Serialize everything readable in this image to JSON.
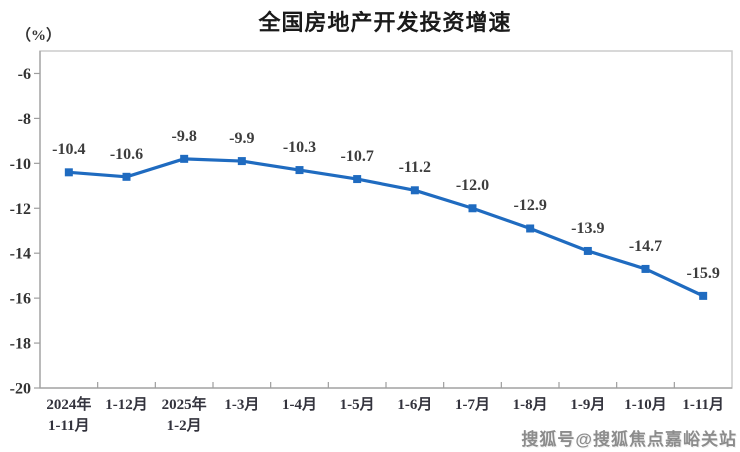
{
  "page": {
    "watermark": "搜狐号@搜狐焦点嘉峪关站"
  },
  "chart_data": {
    "type": "line",
    "title": "全国房地产开发投资增速",
    "ylabel": "（%）",
    "xlabel": "",
    "legend": "none",
    "grid": false,
    "categories": [
      "2024年 1-11月",
      "1-12月",
      "2025年 1-2月",
      "1-3月",
      "1-4月",
      "1-5月",
      "1-6月",
      "1-7月",
      "1-8月",
      "1-9月",
      "1-10月",
      "1-11月"
    ],
    "category_lines": [
      [
        "2024年",
        "1-11月"
      ],
      [
        "1-12月"
      ],
      [
        "2025年",
        "1-2月"
      ],
      [
        "1-3月"
      ],
      [
        "1-4月"
      ],
      [
        "1-5月"
      ],
      [
        "1-6月"
      ],
      [
        "1-7月"
      ],
      [
        "1-8月"
      ],
      [
        "1-9月"
      ],
      [
        "1-10月"
      ],
      [
        "1-11月"
      ]
    ],
    "values": [
      -10.4,
      -10.6,
      -9.8,
      -9.9,
      -10.3,
      -10.7,
      -11.2,
      -12.0,
      -12.9,
      -13.9,
      -14.7,
      -15.9
    ],
    "point_labels": [
      "-10.4",
      "-10.6",
      "-9.8",
      "-9.9",
      "-10.3",
      "-10.7",
      "-11.2",
      "-12.0",
      "-12.9",
      "-13.9",
      "-14.7",
      "-15.9"
    ],
    "y_ticks": [
      -6,
      -8,
      -10,
      -12,
      -14,
      -16,
      -18,
      -20
    ],
    "ylim": [
      -20,
      -5
    ],
    "colors": {
      "line": "#1f6bc0",
      "marker": "#1f6bc0",
      "data_label": "#3d3d3d",
      "axis_text": "#333333",
      "plot_border": "#cccccc",
      "axis_line": "#9e9e9e",
      "title": "#1a1a1a",
      "watermark": "#8c8c8c"
    }
  }
}
